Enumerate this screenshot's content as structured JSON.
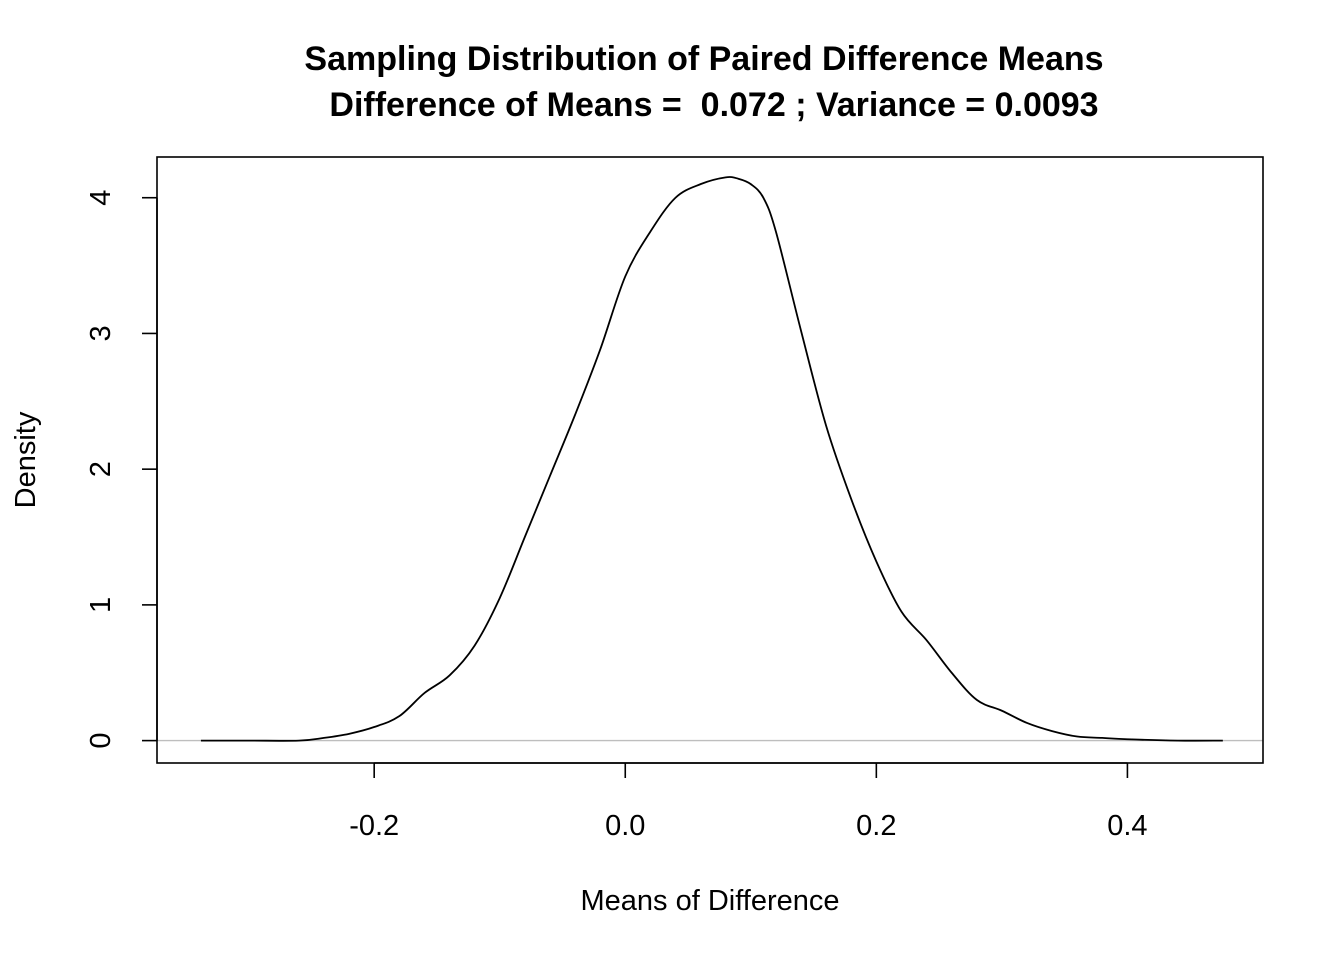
{
  "chart_data": {
    "type": "line",
    "title": "Sampling Distribution of Paired Difference Means",
    "subtitle": "Difference of Means =  0.072 ; Variance = 0.0093",
    "xlabel": "Means of Difference",
    "ylabel": "Density",
    "xlim": [
      -0.373,
      0.508
    ],
    "ylim": [
      -0.165,
      4.3
    ],
    "x_ticks": [
      -0.2,
      0.0,
      0.2,
      0.4
    ],
    "x_tick_labels": [
      "-0.2",
      "0.0",
      "0.2",
      "0.4"
    ],
    "y_ticks": [
      0,
      1,
      2,
      3,
      4
    ],
    "y_tick_labels": [
      "0",
      "1",
      "2",
      "3",
      "4"
    ],
    "zero_line": true,
    "grid": false,
    "legend": "none",
    "colors": {
      "curve": "#000000",
      "zero_line": "#bebebe",
      "frame": "#000000",
      "background": "#ffffff"
    },
    "series": [
      {
        "x": [
          -0.338,
          -0.3,
          -0.26,
          -0.24,
          -0.22,
          -0.2,
          -0.18,
          -0.16,
          -0.14,
          -0.12,
          -0.1,
          -0.08,
          -0.06,
          -0.04,
          -0.02,
          0.0,
          0.02,
          0.04,
          0.06,
          0.08,
          0.09,
          0.1,
          0.11,
          0.12,
          0.14,
          0.16,
          0.18,
          0.2,
          0.22,
          0.24,
          0.26,
          0.28,
          0.3,
          0.32,
          0.34,
          0.36,
          0.38,
          0.4,
          0.44,
          0.476
        ],
        "y": [
          0.0,
          0.0,
          0.0,
          0.02,
          0.05,
          0.1,
          0.18,
          0.35,
          0.48,
          0.7,
          1.05,
          1.5,
          1.95,
          2.4,
          2.88,
          3.42,
          3.75,
          4.0,
          4.1,
          4.15,
          4.14,
          4.1,
          4.0,
          3.75,
          3.02,
          2.32,
          1.78,
          1.32,
          0.95,
          0.74,
          0.5,
          0.3,
          0.22,
          0.13,
          0.07,
          0.03,
          0.02,
          0.01,
          0.0,
          0.0
        ]
      }
    ]
  }
}
